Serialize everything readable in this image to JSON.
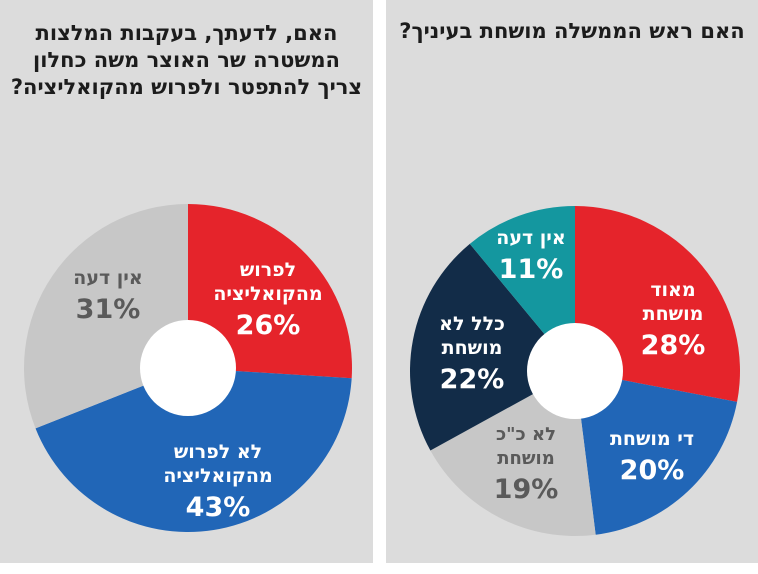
{
  "chart_data": [
    {
      "type": "pie",
      "donut": true,
      "title": "האם, לדעתך, בעקבות המלצות המשטרה שר האוצר משה כחלון צריך להתפטר ולפרוש מהקואליציה?",
      "slices": [
        {
          "label": "לפרוש מהקואליציה",
          "value": 26,
          "value_label": "26%",
          "color": "#e5242b"
        },
        {
          "label": "לא לפרוש מהקואליציה",
          "value": 43,
          "value_label": "43%",
          "color": "#2166b7"
        },
        {
          "label": "אין דעה",
          "value": 31,
          "value_label": "31%",
          "color": "#c7c7c7"
        }
      ]
    },
    {
      "type": "pie",
      "donut": true,
      "title": "האם ראש הממשלה מושחת בעיניך?",
      "slices": [
        {
          "label": "מאוד מושחת",
          "value": 28,
          "value_label": "28%",
          "color": "#e5242b"
        },
        {
          "label": "די מושחת",
          "value": 20,
          "value_label": "20%",
          "color": "#2166b7"
        },
        {
          "label": "לא כ\"כ מושחת",
          "value": 19,
          "value_label": "19%",
          "color": "#c7c7c7"
        },
        {
          "label": "כלל לא מושחת",
          "value": 22,
          "value_label": "22%",
          "color": "#122c48"
        },
        {
          "label": "אין דעה",
          "value": 11,
          "value_label": "11%",
          "color": "#14979f"
        }
      ]
    }
  ]
}
